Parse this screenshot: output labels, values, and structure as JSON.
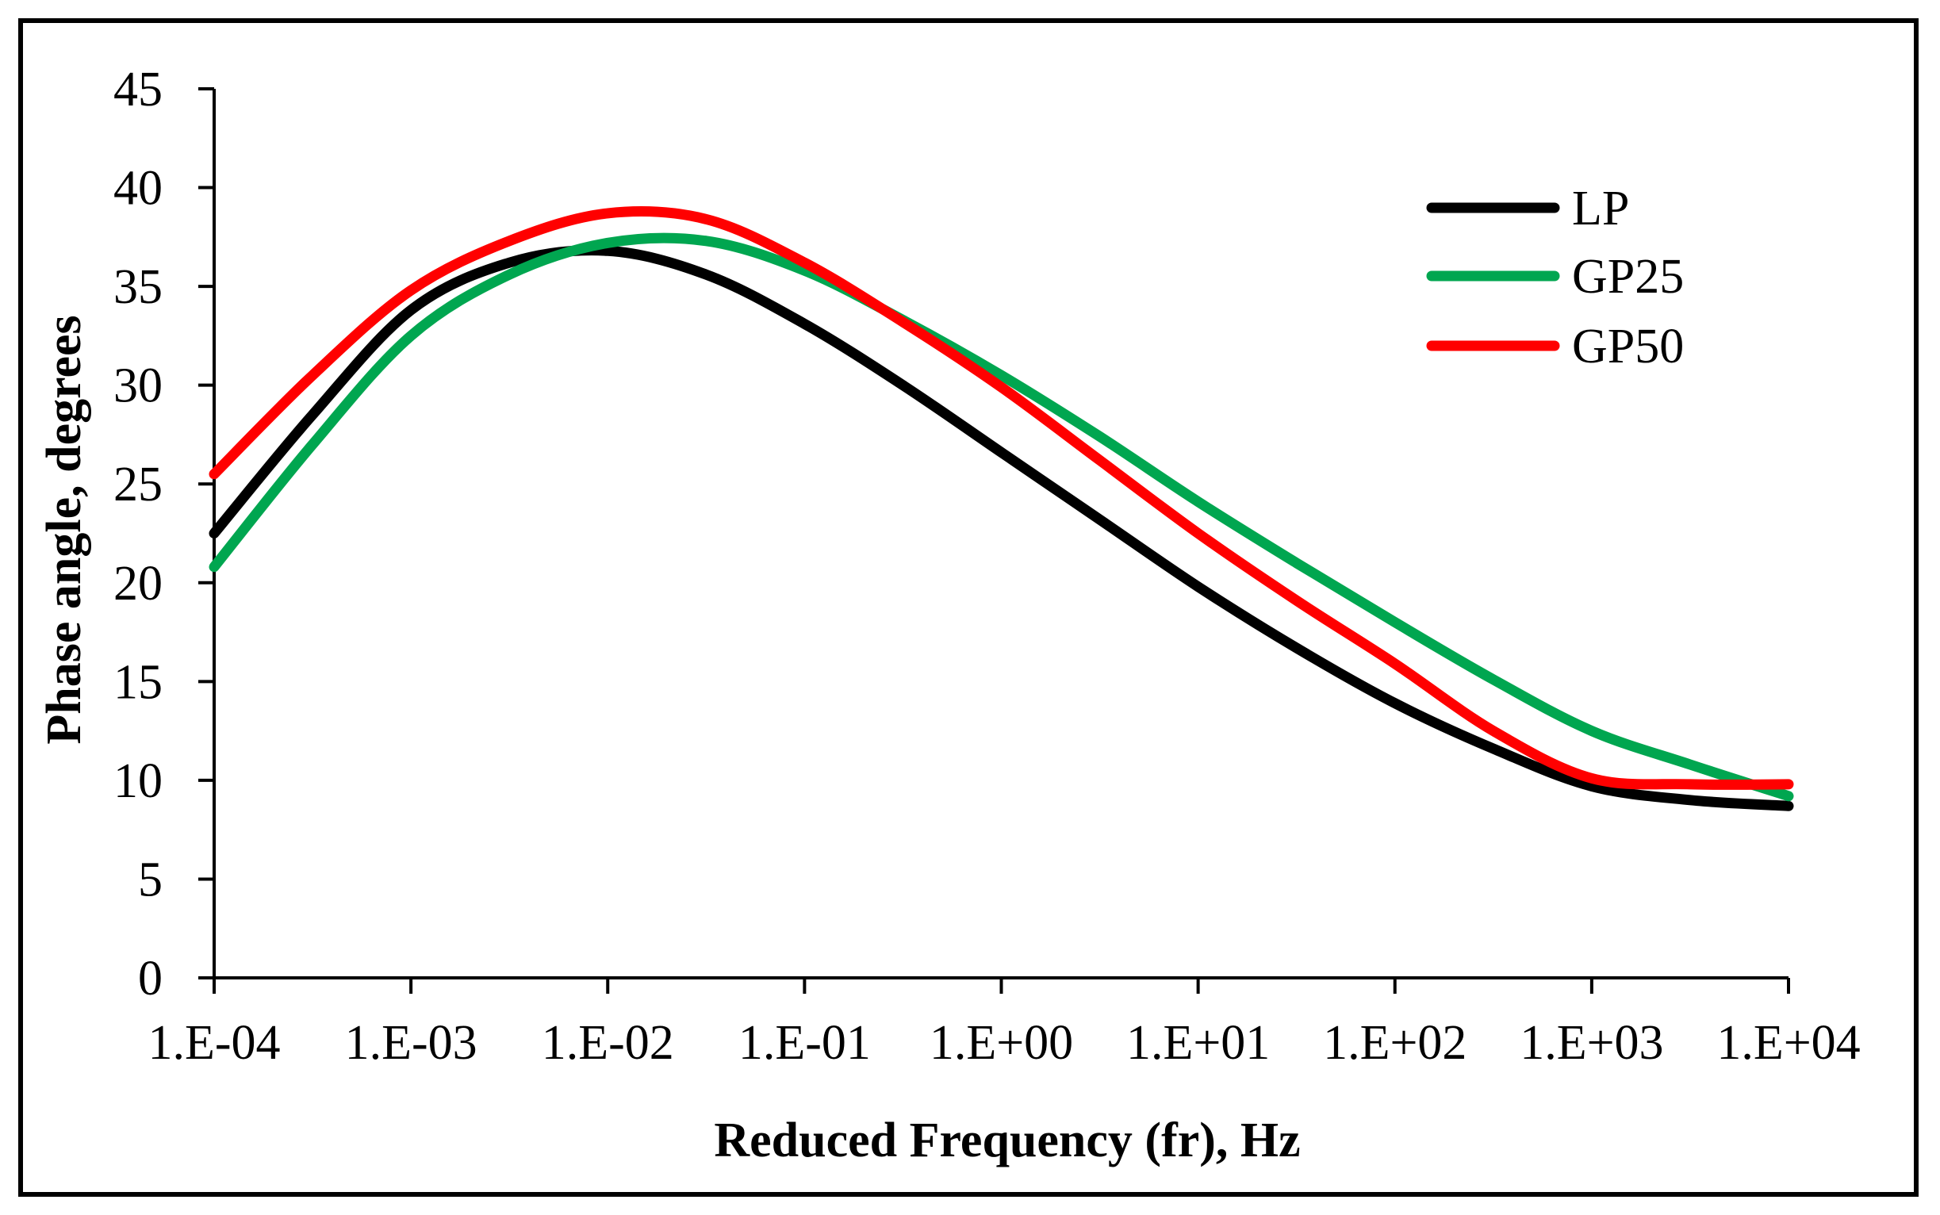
{
  "chart_data": {
    "type": "line",
    "title": "",
    "xlabel": "Reduced Frequency (fr), Hz",
    "ylabel": "Phase angle, degrees",
    "xscale": "log",
    "xlim_log10": [
      -4,
      4
    ],
    "ylim": [
      0,
      45
    ],
    "y_ticks": [
      "0",
      "5",
      "10",
      "15",
      "20",
      "25",
      "30",
      "35",
      "40",
      "45"
    ],
    "x_ticks": [
      "1.E-04",
      "1.E-03",
      "1.E-02",
      "1.E-01",
      "1.E+00",
      "1.E+01",
      "1.E+02",
      "1.E+03",
      "1.E+04"
    ],
    "grid": false,
    "legend_position": "top-right",
    "x_log10": [
      -4,
      -3.5,
      -3,
      -2.5,
      -2,
      -1.5,
      -1,
      -0.5,
      0,
      0.5,
      1,
      1.5,
      2,
      2.5,
      3,
      3.5,
      4
    ],
    "series": [
      {
        "name": "LP",
        "color": "#000000",
        "values": [
          22.5,
          28.5,
          33.8,
          36.2,
          36.8,
          35.6,
          33.1,
          30.0,
          26.6,
          23.2,
          19.8,
          16.7,
          13.9,
          11.6,
          9.7,
          9.0,
          8.7
        ]
      },
      {
        "name": "GP25",
        "color": "#00a650",
        "values": [
          20.8,
          27.0,
          32.5,
          35.6,
          37.2,
          37.3,
          35.8,
          33.3,
          30.5,
          27.4,
          24.1,
          21.0,
          18.0,
          15.1,
          12.5,
          10.8,
          9.2
        ]
      },
      {
        "name": "GP50",
        "color": "#ff0000",
        "values": [
          25.5,
          30.5,
          34.8,
          37.3,
          38.7,
          38.4,
          36.2,
          33.2,
          29.9,
          26.2,
          22.5,
          19.1,
          15.9,
          12.5,
          10.1,
          9.8,
          9.8
        ]
      }
    ]
  }
}
